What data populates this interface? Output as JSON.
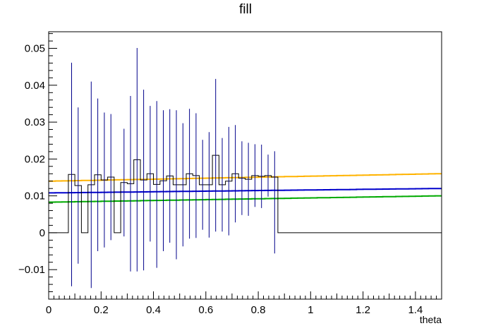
{
  "chart_data": {
    "type": "histogram",
    "title": "fill",
    "xlabel": "theta",
    "ylabel": "",
    "xlim": [
      0,
      1.5
    ],
    "ylim": [
      -0.018,
      0.0545
    ],
    "xticks": [
      0,
      0.2,
      0.4,
      0.6,
      0.8,
      1,
      1.2,
      1.4
    ],
    "xtick_labels": [
      "0",
      "0.2",
      "0.4",
      "0.6",
      "0.8",
      "1",
      "1.2",
      "1.4"
    ],
    "yticks": [
      -0.01,
      0,
      0.01,
      0.02,
      0.03,
      0.04,
      0.05
    ],
    "ytick_labels": [
      "−0.01",
      "0",
      "0.01",
      "0.02",
      "0.03",
      "0.04",
      "0.05"
    ],
    "grid": false,
    "legend": "none",
    "bin_width": 0.025,
    "histogram": {
      "color": "#000000",
      "error_color": "#00008b",
      "values": [
        0.0,
        0.0,
        0.0,
        0.0158,
        0.0128,
        0.0,
        0.013,
        0.0157,
        0.0143,
        0.0151,
        0.0,
        0.0136,
        0.0133,
        0.0198,
        0.0143,
        0.016,
        0.0131,
        0.0141,
        0.0154,
        0.013,
        0.013,
        0.016,
        0.0155,
        0.013,
        0.013,
        0.021,
        0.013,
        0.014,
        0.016,
        0.0148,
        0.0145,
        0.0155,
        0.0153,
        0.0155,
        0.0151,
        0.0,
        0.0,
        0.0,
        0.0,
        0.0,
        0.0,
        0.0,
        0.0,
        0.0,
        0.0,
        0.0,
        0.0,
        0.0,
        0.0,
        0.0,
        0.0,
        0.0,
        0.0,
        0.0,
        0.0,
        0.0,
        0.0,
        0.0,
        0.0,
        0.0
      ],
      "errors_low": [
        0,
        0,
        0,
        0.0303,
        0.0212,
        0,
        0.028,
        0.0207,
        0.0183,
        0.0171,
        0,
        0.0146,
        0.0238,
        0.0303,
        0.0245,
        0.0184,
        0.0226,
        0.0191,
        0.0181,
        0.0202,
        0.0167,
        0.0176,
        0.0169,
        0.0122,
        0.0143,
        0.0207,
        0.0127,
        0.0147,
        0.0132,
        0.01,
        0.0099,
        0.0085,
        0.0086,
        0.0057,
        0.0207,
        0,
        0,
        0,
        0,
        0,
        0,
        0,
        0,
        0,
        0,
        0,
        0,
        0,
        0,
        0,
        0,
        0,
        0,
        0,
        0,
        0,
        0,
        0,
        0,
        0
      ],
      "errors_high": [
        0,
        0,
        0,
        0.0303,
        0.0212,
        0,
        0.028,
        0.0207,
        0.0183,
        0.0171,
        0,
        0.0146,
        0.0238,
        0.0303,
        0.0245,
        0.0184,
        0.0226,
        0.0191,
        0.0181,
        0.0202,
        0.0167,
        0.0176,
        0.0169,
        0.0122,
        0.0143,
        0.0207,
        0.0127,
        0.0147,
        0.0132,
        0.01,
        0.0099,
        0.0085,
        0.0086,
        0.0057,
        0.007,
        0,
        0,
        0,
        0,
        0,
        0,
        0,
        0,
        0,
        0,
        0,
        0,
        0,
        0,
        0,
        0,
        0,
        0,
        0,
        0,
        0,
        0,
        0,
        0,
        0
      ]
    },
    "series": [
      {
        "color": "#ffb300",
        "y_start": 0.014,
        "y_end": 0.016
      },
      {
        "color": "#0000cc",
        "y_start": 0.0108,
        "y_end": 0.012
      },
      {
        "color": "#00aa00",
        "y_start": 0.0083,
        "y_end": 0.01
      }
    ]
  }
}
